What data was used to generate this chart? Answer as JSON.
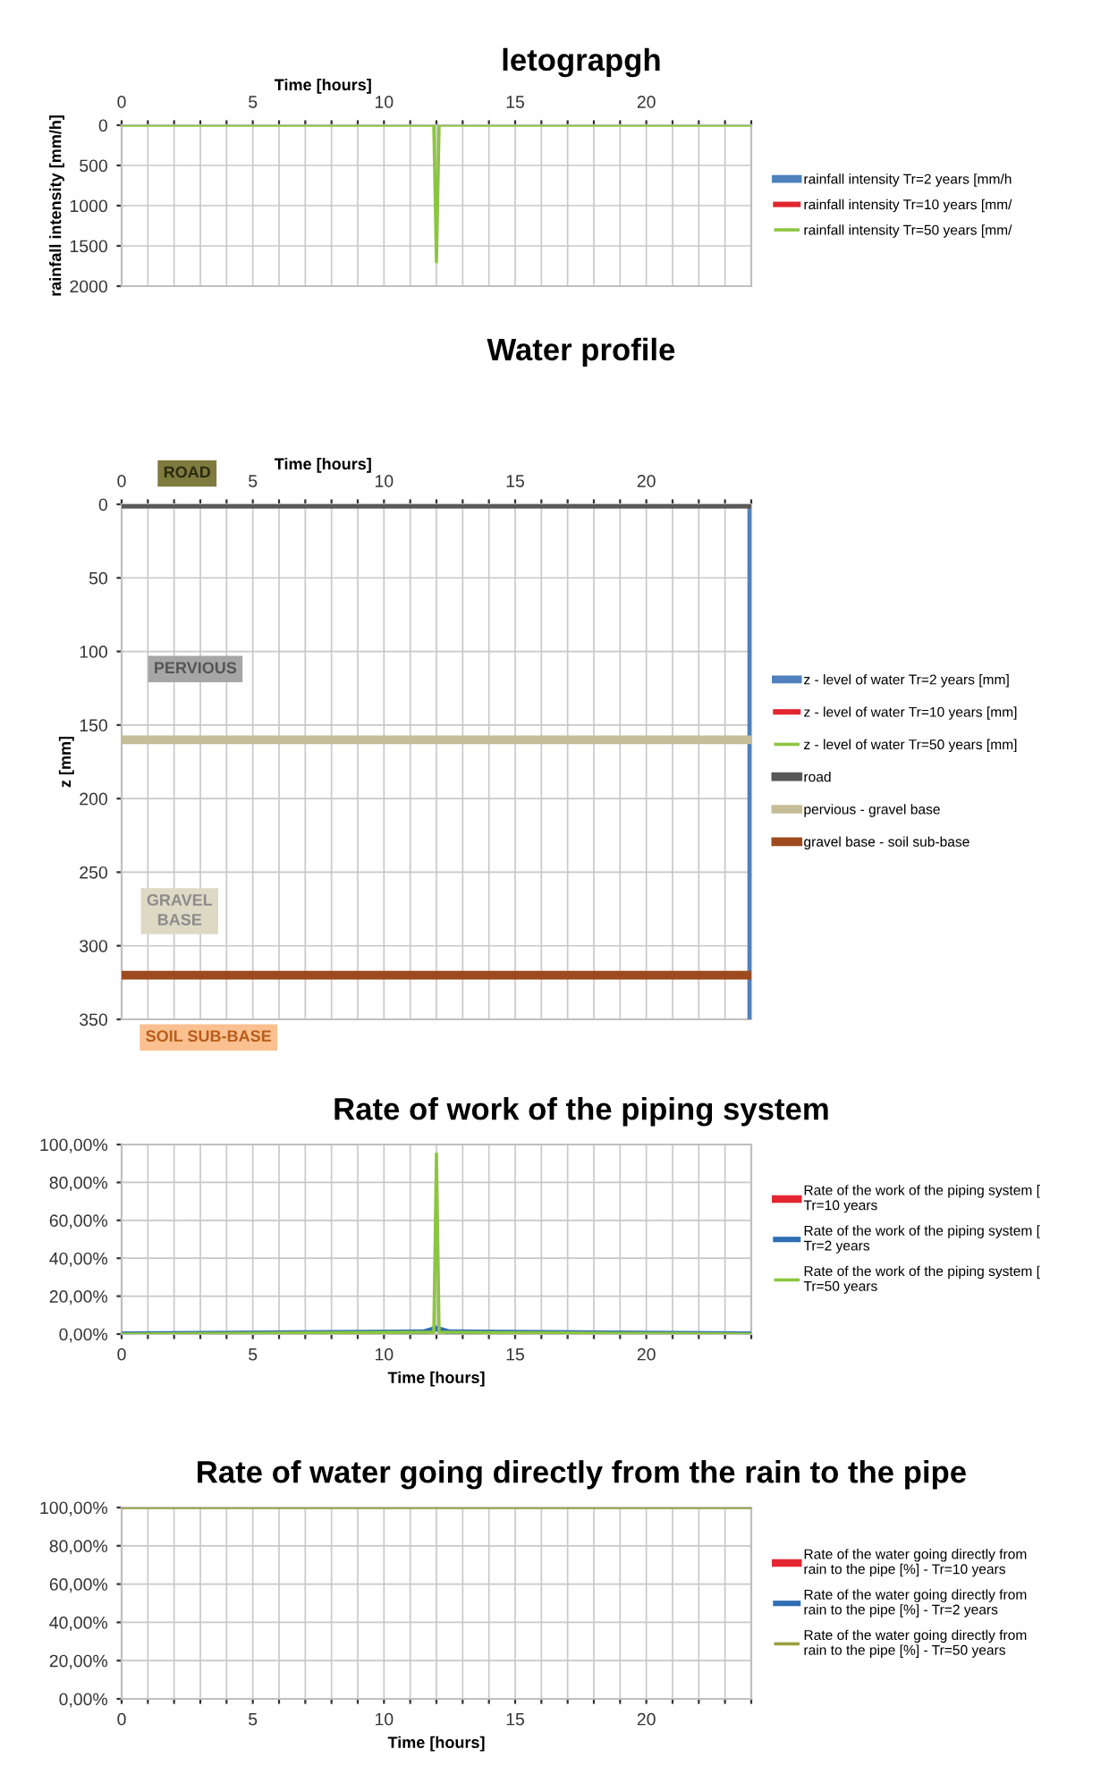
{
  "chart_data": [
    {
      "type": "line",
      "title": "letograpgh",
      "xlabel": "Time [hours]",
      "ylabel": "rainfall intensity [mm/h]",
      "xlim": [
        0,
        24
      ],
      "xticks": [
        0,
        {
          "value": 1,
          "label": null
        },
        {
          "value": 2,
          "label": null
        },
        {
          "value": 3,
          "label": null
        },
        {
          "value": 4,
          "label": null
        },
        5,
        {
          "value": 6,
          "label": null
        },
        {
          "value": 7,
          "label": null
        },
        {
          "value": 8,
          "label": null
        },
        {
          "value": 9,
          "label": null
        },
        10,
        {
          "value": 11,
          "label": null
        },
        {
          "value": 12,
          "label": null
        },
        {
          "value": 13,
          "label": null
        },
        {
          "value": 14,
          "label": null
        },
        15,
        {
          "value": 16,
          "label": null
        },
        {
          "value": 17,
          "label": null
        },
        {
          "value": 18,
          "label": null
        },
        {
          "value": 19,
          "label": null
        },
        20,
        {
          "value": 21,
          "label": null
        },
        {
          "value": 22,
          "label": null
        },
        {
          "value": 23,
          "label": null
        },
        {
          "value": 24,
          "label": null
        }
      ],
      "ylim": [
        2000,
        0
      ],
      "yticks": [
        0,
        500,
        1000,
        1500,
        2000
      ],
      "grid": true,
      "legend": "right",
      "series": [
        {
          "name": "rainfall intensity Tr=2 years [mm/h",
          "color": "#4f81bd"
        },
        {
          "name": "rainfall intensity Tr=10 years [mm/",
          "color": "#e3262f"
        },
        {
          "name": "rainfall intensity Tr=50 years [mm/",
          "color": "#8cc63f",
          "x": [
            0,
            11.9,
            12,
            12.1,
            24
          ],
          "values": [
            0,
            0,
            1700,
            0,
            0
          ]
        }
      ]
    },
    {
      "type": "line",
      "title": "Water profile",
      "xlabel": "Time [hours]",
      "ylabel": "z [mm]",
      "xlim": [
        0,
        24
      ],
      "xticks": [
        0,
        {
          "value": 1,
          "label": null
        },
        {
          "value": 2,
          "label": null
        },
        {
          "value": 3,
          "label": null
        },
        {
          "value": 4,
          "label": null
        },
        5,
        {
          "value": 6,
          "label": null
        },
        {
          "value": 7,
          "label": null
        },
        {
          "value": 8,
          "label": null
        },
        {
          "value": 9,
          "label": null
        },
        10,
        {
          "value": 11,
          "label": null
        },
        {
          "value": 12,
          "label": null
        },
        {
          "value": 13,
          "label": null
        },
        {
          "value": 14,
          "label": null
        },
        15,
        {
          "value": 16,
          "label": null
        },
        {
          "value": 17,
          "label": null
        },
        {
          "value": 18,
          "label": null
        },
        {
          "value": 19,
          "label": null
        },
        20,
        {
          "value": 21,
          "label": null
        },
        {
          "value": 22,
          "label": null
        },
        {
          "value": 23,
          "label": null
        },
        {
          "value": 24,
          "label": null
        }
      ],
      "ylim": [
        350,
        0
      ],
      "yticks": [
        0,
        50,
        100,
        150,
        200,
        250,
        300,
        350
      ],
      "grid": true,
      "legend": "right",
      "series": [
        {
          "name": "z - level of water Tr=2 years [mm]",
          "color": "#4f81bd",
          "x": [
            24,
            24
          ],
          "values": [
            0,
            350
          ]
        },
        {
          "name": "z - level of water Tr=10 years [mm]",
          "color": "#e3262f"
        },
        {
          "name": "z - level of water Tr=50 years [mm]",
          "color": "#8cc63f"
        },
        {
          "name": "road",
          "color": "#595959",
          "x": [
            0,
            24
          ],
          "values": [
            0,
            0
          ]
        },
        {
          "name": "pervious - gravel base",
          "color": "#c4bd97",
          "x": [
            0,
            24
          ],
          "values": [
            160,
            160
          ]
        },
        {
          "name": "gravel base - soil sub-base",
          "color": "#9c4a1e",
          "x": [
            0,
            24
          ],
          "values": [
            320,
            320
          ]
        }
      ],
      "annotations": [
        "ROAD",
        "PERVIOUS",
        "GRAVEL\nBASE",
        "SOIL SUB-BASE"
      ]
    },
    {
      "type": "line",
      "title": "Rate of work of the piping system",
      "xlabel": "Time [hours]",
      "xlim": [
        0,
        24
      ],
      "xticks": [
        0,
        {
          "value": 1,
          "label": null
        },
        {
          "value": 2,
          "label": null
        },
        {
          "value": 3,
          "label": null
        },
        {
          "value": 4,
          "label": null
        },
        5,
        {
          "value": 6,
          "label": null
        },
        {
          "value": 7,
          "label": null
        },
        {
          "value": 8,
          "label": null
        },
        {
          "value": 9,
          "label": null
        },
        10,
        {
          "value": 11,
          "label": null
        },
        {
          "value": 12,
          "label": null
        },
        {
          "value": 13,
          "label": null
        },
        {
          "value": 14,
          "label": null
        },
        15,
        {
          "value": 16,
          "label": null
        },
        {
          "value": 17,
          "label": null
        },
        {
          "value": 18,
          "label": null
        },
        {
          "value": 19,
          "label": null
        },
        20,
        {
          "value": 21,
          "label": null
        },
        {
          "value": 22,
          "label": null
        },
        {
          "value": 23,
          "label": null
        },
        {
          "value": 24,
          "label": null
        }
      ],
      "ylim": [
        0,
        100
      ],
      "yticks": [
        {
          "value": 0,
          "label": "0,00%"
        },
        {
          "value": 20,
          "label": "20,00%"
        },
        {
          "value": 40,
          "label": "40,00%"
        },
        {
          "value": 60,
          "label": "60,00%"
        },
        {
          "value": 80,
          "label": "80,00%"
        },
        {
          "value": 100,
          "label": "100,00%"
        }
      ],
      "grid": true,
      "legend": "right",
      "series": [
        {
          "name": "Rate of the work of the piping system [\nTr=10 years",
          "color": "#e3262f"
        },
        {
          "name": "Rate of the work of the piping system [\nTr=2 years",
          "color": "#2f6eb5",
          "x": [
            0,
            11.5,
            12,
            12.5,
            24
          ],
          "values": [
            0,
            1,
            3,
            1,
            0
          ]
        },
        {
          "name": "Rate of the work of the piping system [\nTr=50 years",
          "color": "#8cc63f",
          "x": [
            0,
            11.9,
            12,
            12.1,
            24
          ],
          "values": [
            0,
            1,
            95,
            1,
            0
          ]
        }
      ]
    },
    {
      "type": "line",
      "title": "Rate of water going directly from the rain to the pipe",
      "xlabel": "Time [hours]",
      "xlim": [
        0,
        24
      ],
      "xticks": [
        0,
        {
          "value": 1,
          "label": null
        },
        {
          "value": 2,
          "label": null
        },
        {
          "value": 3,
          "label": null
        },
        {
          "value": 4,
          "label": null
        },
        5,
        {
          "value": 6,
          "label": null
        },
        {
          "value": 7,
          "label": null
        },
        {
          "value": 8,
          "label": null
        },
        {
          "value": 9,
          "label": null
        },
        10,
        {
          "value": 11,
          "label": null
        },
        {
          "value": 12,
          "label": null
        },
        {
          "value": 13,
          "label": null
        },
        {
          "value": 14,
          "label": null
        },
        15,
        {
          "value": 16,
          "label": null
        },
        {
          "value": 17,
          "label": null
        },
        {
          "value": 18,
          "label": null
        },
        {
          "value": 19,
          "label": null
        },
        20,
        {
          "value": 21,
          "label": null
        },
        {
          "value": 22,
          "label": null
        },
        {
          "value": 23,
          "label": null
        },
        {
          "value": 24,
          "label": null
        }
      ],
      "ylim": [
        0,
        100
      ],
      "yticks": [
        {
          "value": 0,
          "label": "0,00%"
        },
        {
          "value": 20,
          "label": "20,00%"
        },
        {
          "value": 40,
          "label": "40,00%"
        },
        {
          "value": 60,
          "label": "60,00%"
        },
        {
          "value": 80,
          "label": "80,00%"
        },
        {
          "value": 100,
          "label": "100,00%"
        }
      ],
      "grid": true,
      "legend": "right",
      "series": [
        {
          "name": "Rate of the water going directly from\nrain to the pipe [%] - Tr=10 years",
          "color": "#e3262f"
        },
        {
          "name": "Rate of the water going directly from\nrain to the pipe [%] - Tr=2 years",
          "color": "#2f6eb5"
        },
        {
          "name": "Rate of the water going directly from\nrain to the pipe [%] - Tr=50 years",
          "color": "#98a040",
          "x": [
            0,
            24
          ],
          "values": [
            100,
            100
          ]
        }
      ]
    }
  ]
}
